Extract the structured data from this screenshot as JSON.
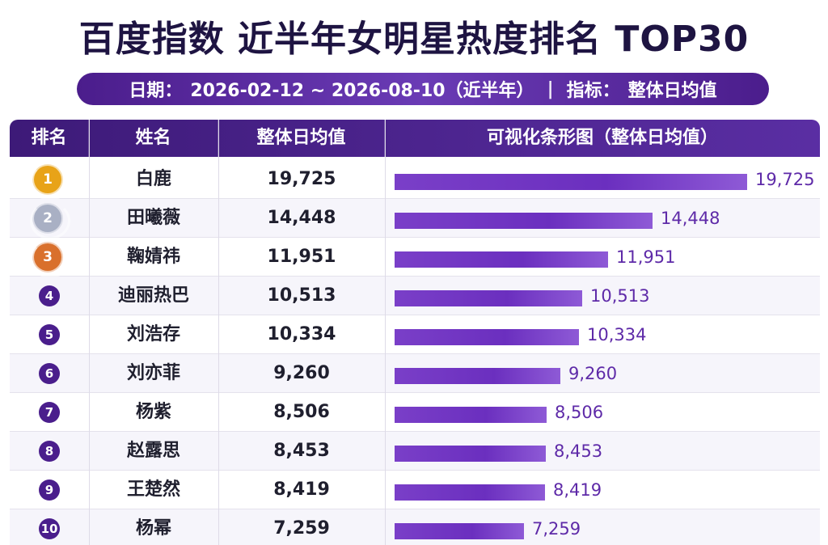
{
  "header": {
    "title": "百度指数 近半年女明星热度排名 TOP30",
    "date_label": "日期：",
    "date_range": "2026-02-12 ~ 2026-08-10（近半年）",
    "separator": "|",
    "metric_label": "指标：",
    "metric_value": "整体日均值"
  },
  "table": {
    "columns": [
      "排名",
      "姓名",
      "整体日均值",
      "可视化条形图（整体日均值）"
    ]
  },
  "colors": {
    "accent": "#4a1e8c",
    "bar": "#7a3fc8",
    "gold": "#e8a318",
    "silver": "#a9b0c4",
    "bronze": "#d9702c"
  },
  "chart_data": {
    "type": "bar",
    "orientation": "horizontal",
    "categories": [
      "白鹿",
      "田曦薇",
      "鞠婧祎",
      "迪丽热巴",
      "刘浩存",
      "刘亦菲",
      "杨紫",
      "赵露思",
      "王楚然",
      "杨幂"
    ],
    "values": [
      19725,
      14448,
      11951,
      10513,
      10334,
      9260,
      8506,
      8453,
      8419,
      7259
    ],
    "rows": [
      {
        "rank": "1",
        "name": "白鹿",
        "value": "19,725",
        "num": 19725
      },
      {
        "rank": "2",
        "name": "田曦薇",
        "value": "14,448",
        "num": 14448
      },
      {
        "rank": "3",
        "name": "鞠婧祎",
        "value": "11,951",
        "num": 11951
      },
      {
        "rank": "4",
        "name": "迪丽热巴",
        "value": "10,513",
        "num": 10513
      },
      {
        "rank": "5",
        "name": "刘浩存",
        "value": "10,334",
        "num": 10334
      },
      {
        "rank": "6",
        "name": "刘亦菲",
        "value": "9,260",
        "num": 9260
      },
      {
        "rank": "7",
        "name": "杨紫",
        "value": "8,506",
        "num": 8506
      },
      {
        "rank": "8",
        "name": "赵露思",
        "value": "8,453",
        "num": 8453
      },
      {
        "rank": "9",
        "name": "王楚然",
        "value": "8,419",
        "num": 8419
      },
      {
        "rank": "10",
        "name": "杨幂",
        "value": "7,259",
        "num": 7259
      }
    ],
    "xlim": [
      0,
      19725
    ]
  }
}
